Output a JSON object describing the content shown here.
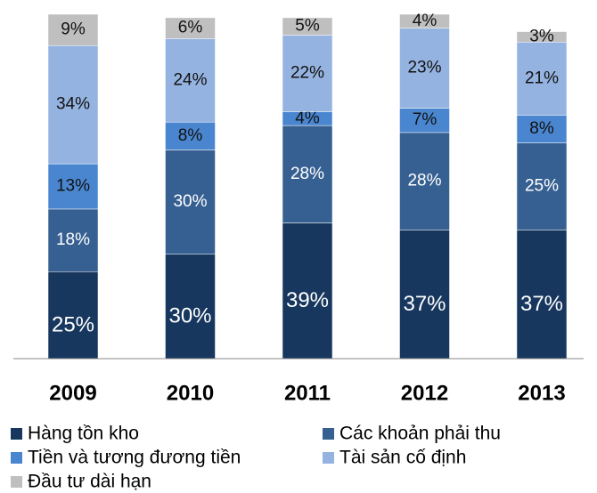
{
  "chart_data": {
    "type": "stacked-bar",
    "categories": [
      "2009",
      "2010",
      "2011",
      "2012",
      "2013"
    ],
    "series": [
      {
        "name": "Hàng tồn kho",
        "color": "#17375e",
        "values": [
          25,
          30,
          39,
          37,
          37
        ],
        "value_labels": [
          "25%",
          "30%",
          "39%",
          "37%",
          "37%"
        ]
      },
      {
        "name": "Các khoản phải thu",
        "color": "#376092",
        "values": [
          18,
          30,
          28,
          28,
          25
        ],
        "value_labels": [
          "18%",
          "30%",
          "28%",
          "28%",
          "25%"
        ]
      },
      {
        "name": "Tiền và tương đương tiền",
        "color": "#4a86d0",
        "values": [
          13,
          8,
          4,
          7,
          8
        ],
        "value_labels": [
          "13%",
          "8%",
          "4%",
          "7%",
          "8%"
        ]
      },
      {
        "name": "Tài sản cố định",
        "color": "#95b3e0",
        "values": [
          34,
          24,
          22,
          23,
          21
        ],
        "value_labels": [
          "34%",
          "24%",
          "22%",
          "23%",
          "21%"
        ]
      },
      {
        "name": "Đầu tư dài hạn",
        "color": "#bfbfbf",
        "values": [
          9,
          6,
          5,
          4,
          3
        ],
        "value_labels": [
          "9%",
          "6%",
          "5%",
          "4%",
          "3%"
        ]
      }
    ]
  }
}
